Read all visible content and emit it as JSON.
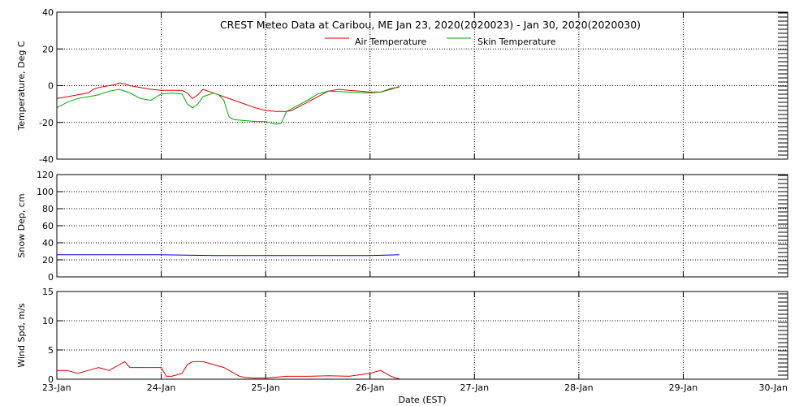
{
  "chart_data": [
    {
      "type": "line",
      "title": "CREST Meteo Data at Caribou, ME   Jan 23, 2020(2020023) - Jan 30, 2020(2020030)",
      "ylabel": "Temperature, Deg C",
      "xlabel": "",
      "ylim": [
        -40,
        40
      ],
      "yticks": [
        -40,
        -20,
        0,
        20,
        40
      ],
      "xlim": [
        0,
        7
      ],
      "grid": true,
      "legend_position": "top-center",
      "series": [
        {
          "name": "Air Temperature",
          "color": "#dd0000",
          "x": [
            0.0,
            0.1,
            0.2,
            0.3,
            0.35,
            0.4,
            0.5,
            0.55,
            0.6,
            0.65,
            0.7,
            0.8,
            0.9,
            1.0,
            1.1,
            1.2,
            1.25,
            1.3,
            1.35,
            1.4,
            1.45,
            1.5,
            1.55,
            1.6,
            1.7,
            1.8,
            1.9,
            2.0,
            2.1,
            2.15,
            2.2,
            2.25,
            2.3,
            2.4,
            2.5,
            2.6,
            2.7,
            2.8,
            2.9,
            3.0,
            3.1,
            3.2,
            3.25,
            3.28
          ],
          "y": [
            -7,
            -6,
            -5,
            -4,
            -2,
            -1,
            0,
            0.5,
            1.5,
            1,
            0,
            -1,
            -2,
            -2.5,
            -2.5,
            -2.5,
            -4,
            -7,
            -5,
            -2,
            -3,
            -4,
            -5,
            -6,
            -8,
            -10,
            -12,
            -13.5,
            -14,
            -14,
            -14,
            -13.5,
            -12,
            -9,
            -6,
            -3,
            -2,
            -2.5,
            -3,
            -3.5,
            -3.5,
            -2,
            -1,
            -0.5
          ]
        },
        {
          "name": "Skin Temperature",
          "color": "#00aa00",
          "x": [
            0.0,
            0.1,
            0.2,
            0.3,
            0.4,
            0.5,
            0.6,
            0.7,
            0.8,
            0.9,
            1.0,
            1.1,
            1.2,
            1.25,
            1.3,
            1.35,
            1.4,
            1.5,
            1.55,
            1.6,
            1.65,
            1.7,
            1.8,
            1.9,
            2.0,
            2.1,
            2.15,
            2.2,
            2.3,
            2.4,
            2.5,
            2.6,
            2.7,
            2.8,
            2.9,
            3.0,
            3.1,
            3.15,
            3.2,
            3.25,
            3.28
          ],
          "y": [
            -12,
            -9,
            -7,
            -6,
            -5,
            -3,
            -2,
            -4,
            -7,
            -8,
            -4.5,
            -4,
            -4.5,
            -10,
            -12,
            -10,
            -6,
            -4,
            -5,
            -8,
            -17,
            -18.5,
            -19,
            -19.5,
            -19.5,
            -21,
            -20.5,
            -14,
            -11,
            -8,
            -4.5,
            -3,
            -3.2,
            -3.5,
            -3.8,
            -4,
            -3.5,
            -2.5,
            -1.5,
            -1,
            -1
          ]
        }
      ]
    },
    {
      "type": "line",
      "title": "",
      "ylabel": "Snow Dep, cm",
      "xlabel": "",
      "ylim": [
        0,
        120
      ],
      "yticks": [
        0,
        20,
        40,
        60,
        80,
        100,
        120
      ],
      "xlim": [
        0,
        7
      ],
      "grid": true,
      "series": [
        {
          "name": "",
          "color": "#0000cc",
          "x": [
            0.0,
            0.5,
            1.0,
            1.5,
            2.0,
            2.5,
            3.0,
            3.28
          ],
          "y": [
            26,
            26,
            26,
            25,
            25,
            25,
            25,
            26
          ]
        }
      ]
    },
    {
      "type": "line",
      "title": "",
      "ylabel": "Wind Spd, m/s",
      "xlabel": "Date (EST)",
      "ylim": [
        0,
        15
      ],
      "yticks": [
        0,
        5,
        10,
        15
      ],
      "xlim": [
        0,
        7
      ],
      "xtick_labels": [
        "23-Jan",
        "24-Jan",
        "25-Jan",
        "26-Jan",
        "27-Jan",
        "28-Jan",
        "29-Jan",
        "30-Jan"
      ],
      "grid": true,
      "series": [
        {
          "name": "",
          "color": "#dd0000",
          "x": [
            0.0,
            0.1,
            0.2,
            0.3,
            0.4,
            0.5,
            0.6,
            0.65,
            0.7,
            0.8,
            0.9,
            1.0,
            1.05,
            1.1,
            1.2,
            1.25,
            1.3,
            1.4,
            1.5,
            1.6,
            1.7,
            1.75,
            1.8,
            1.9,
            2.0,
            2.2,
            2.4,
            2.6,
            2.8,
            3.0,
            3.1,
            3.15,
            3.2,
            3.25,
            3.28
          ],
          "y": [
            1.5,
            1.5,
            1.0,
            1.5,
            2.0,
            1.5,
            2.5,
            3.0,
            2.0,
            2.0,
            2.0,
            2.0,
            0.5,
            0.5,
            1.0,
            2.5,
            3.0,
            3.0,
            2.5,
            2.0,
            1.0,
            0.5,
            0.3,
            0.2,
            0.2,
            0.5,
            0.5,
            0.6,
            0.5,
            1.0,
            1.5,
            1.0,
            0.5,
            0.2,
            0.1
          ]
        }
      ]
    }
  ]
}
